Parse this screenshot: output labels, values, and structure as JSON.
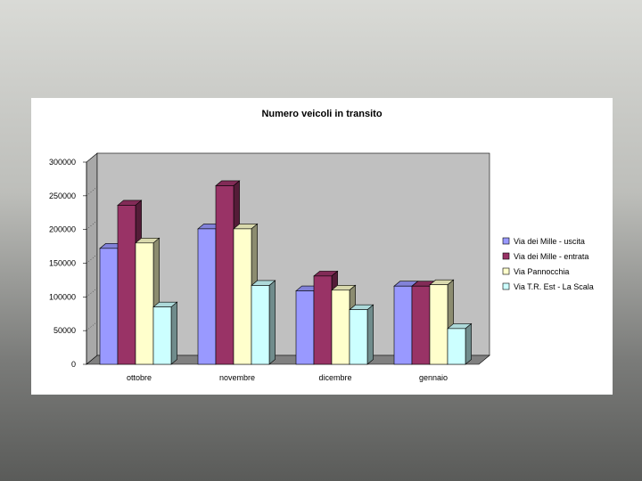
{
  "chart_data": {
    "type": "bar",
    "title": "Numero veicoli in transito",
    "xlabel": "",
    "ylabel": "",
    "categories": [
      "ottobre",
      "novembre",
      "dicembre",
      "gennaio"
    ],
    "y_ticks": [
      "0",
      "50000",
      "100000",
      "150000",
      "200000",
      "250000",
      "300000"
    ],
    "ylim": [
      0,
      300000
    ],
    "series": [
      {
        "name": "Via dei Mille - uscita",
        "values": [
          172000,
          201000,
          109000,
          116000
        ],
        "color": "#9999ff"
      },
      {
        "name": "Via dei Mille - entrata",
        "values": [
          236000,
          265000,
          131000,
          116000
        ],
        "color": "#993366"
      },
      {
        "name": "Via Pannocchia",
        "values": [
          180000,
          201000,
          110000,
          118000
        ],
        "color": "#ffffcc"
      },
      {
        "name": "Via T.R. Est - La Scala",
        "values": [
          85000,
          117000,
          81000,
          53000
        ],
        "color": "#ccffff"
      }
    ],
    "grid": false,
    "legend": "right",
    "wall_color": "#c0c0c0",
    "floor_color": "#808080"
  }
}
